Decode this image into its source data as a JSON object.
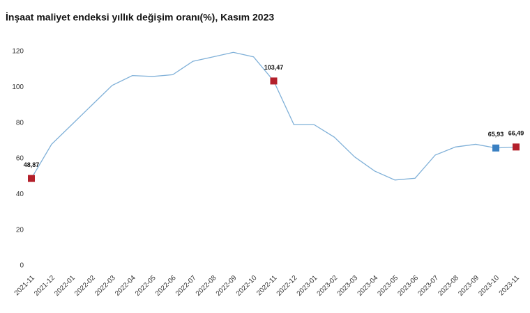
{
  "chart_data": {
    "type": "line",
    "title": "İnşaat maliyet endeksi yıllık değişim oranı(%), Kasım 2023",
    "categories": [
      "2021-11",
      "2021-12",
      "2022-01",
      "2022-02",
      "2022-03",
      "2022-04",
      "2022-05",
      "2022-06",
      "2022-07",
      "2022-08",
      "2022-09",
      "2022-10",
      "2022-11",
      "2022-12",
      "2023-01",
      "2023-02",
      "2023-03",
      "2023-04",
      "2023-05",
      "2023-06",
      "2023-07",
      "2023-08",
      "2023-09",
      "2023-10",
      "2023-11"
    ],
    "series": [
      {
        "color": "#7fb0d8",
        "values": [
          48.87,
          68,
          79,
          90,
          101,
          106.5,
          106,
          107,
          114.5,
          117,
          119.5,
          117,
          103.47,
          79,
          79,
          72,
          61,
          53,
          48,
          49,
          62,
          66.5,
          68,
          65.93,
          66.49
        ],
        "value_labels": [
          "48,87",
          null,
          null,
          null,
          null,
          null,
          null,
          null,
          null,
          null,
          null,
          null,
          "103,47",
          null,
          null,
          null,
          null,
          null,
          null,
          null,
          null,
          null,
          null,
          "65,93",
          "66,49"
        ],
        "marker_colors": [
          "#b3202b",
          null,
          null,
          null,
          null,
          null,
          null,
          null,
          null,
          null,
          null,
          null,
          "#b3202b",
          null,
          null,
          null,
          null,
          null,
          null,
          null,
          null,
          null,
          null,
          "#3a80c2",
          "#b3202b"
        ]
      }
    ],
    "ylim": [
      0,
      120
    ],
    "yticks": [
      0,
      20,
      40,
      60,
      80,
      100,
      120
    ],
    "grid": false
  }
}
